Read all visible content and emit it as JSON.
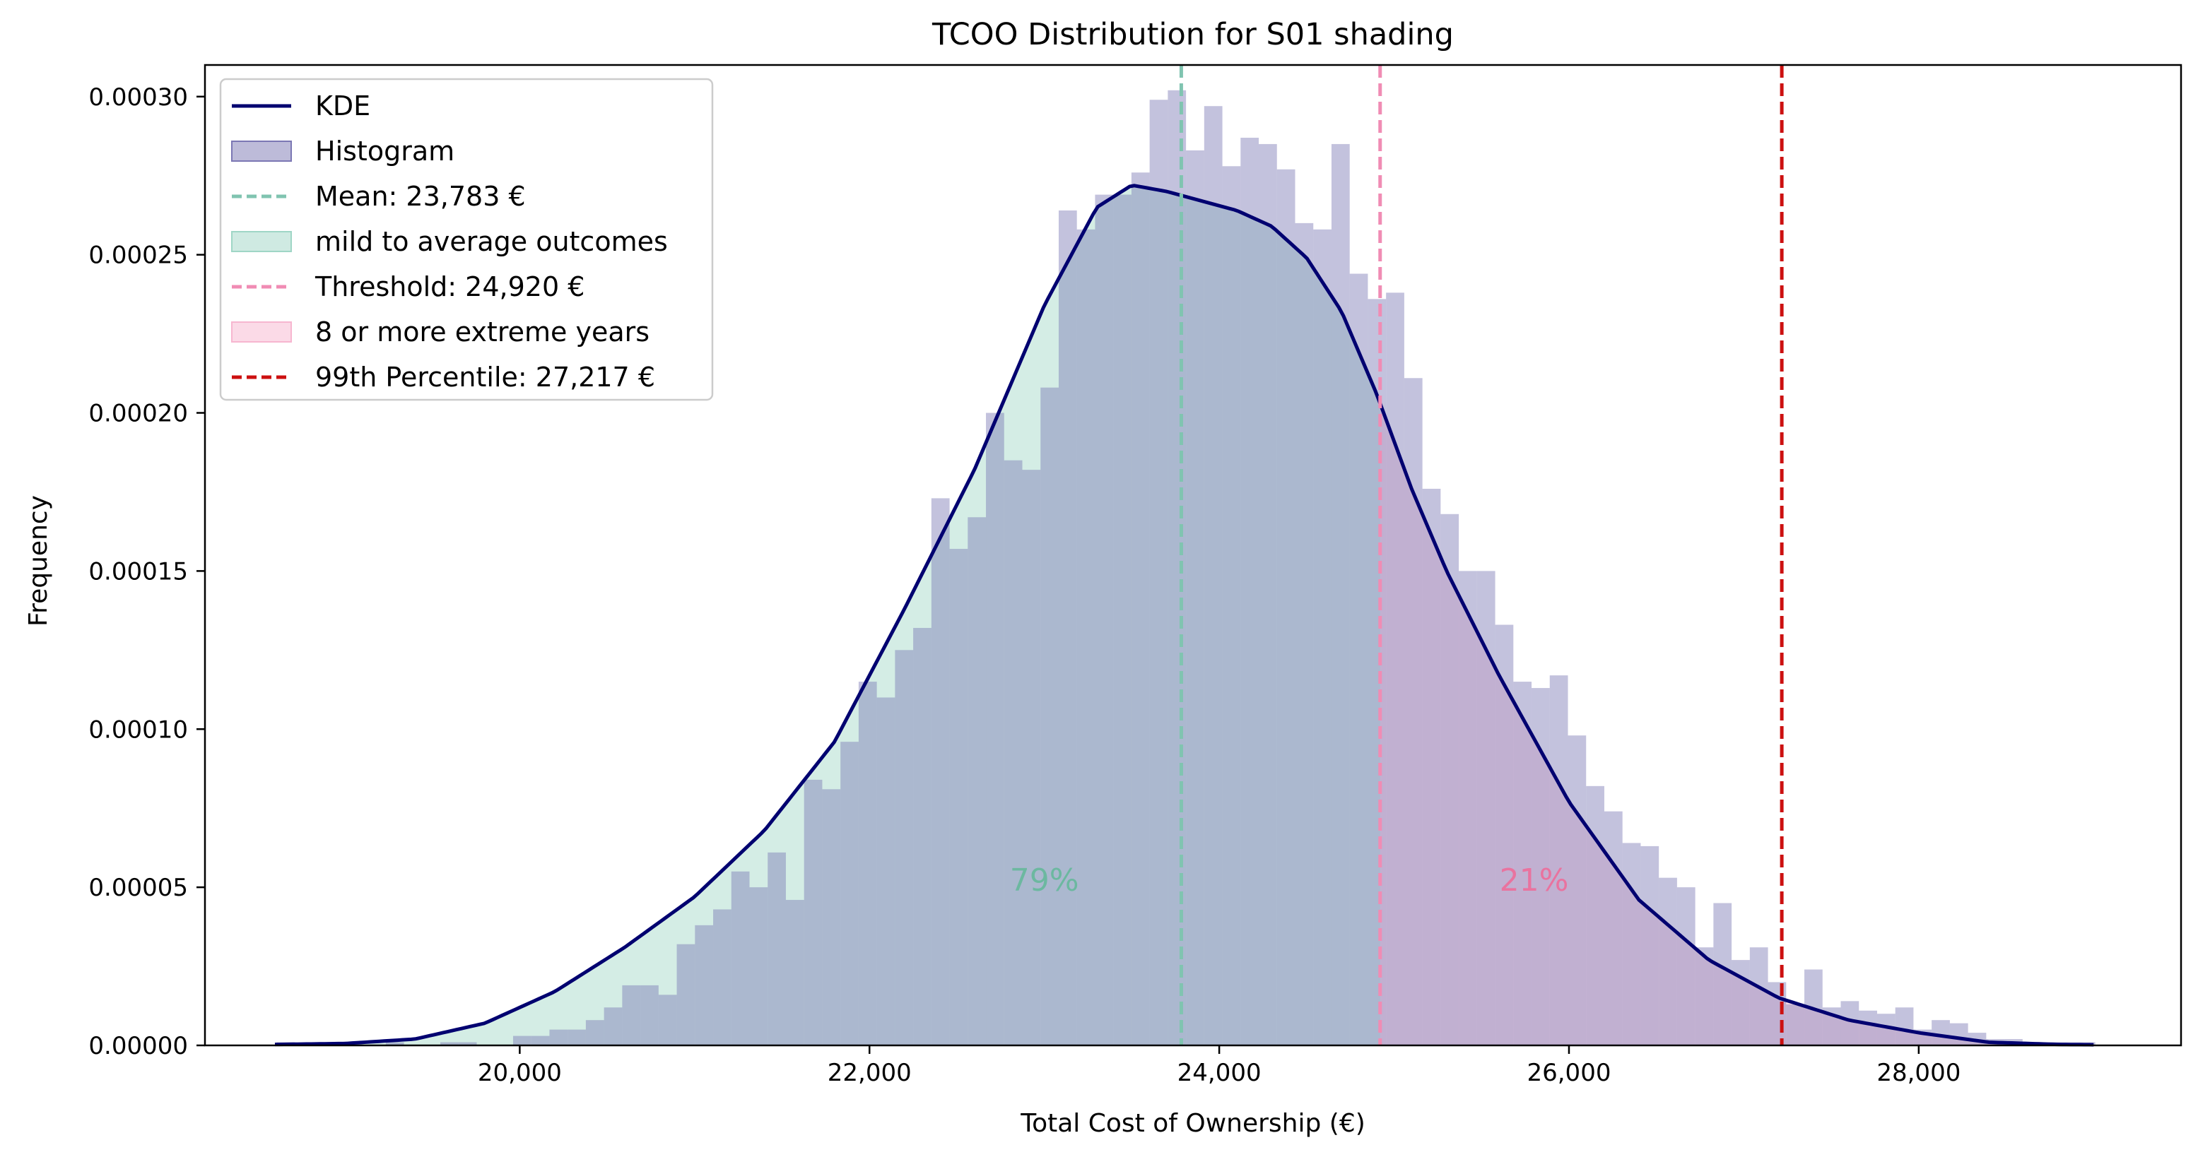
{
  "chart_data": {
    "type": "bar",
    "title": "TCOO Distribution for S01 shading",
    "xlabel": "Total Cost of Ownership (€)",
    "ylabel": "Frequency",
    "xlim": [
      18200,
      29500
    ],
    "ylim": [
      0,
      0.00031
    ],
    "x_ticks": [
      20000,
      22000,
      24000,
      26000,
      28000
    ],
    "x_tick_labels": [
      "20,000",
      "22,000",
      "24,000",
      "26,000",
      "28,000"
    ],
    "y_ticks": [
      0,
      5e-05,
      0.0001,
      0.00015,
      0.0002,
      0.00025,
      0.0003
    ],
    "y_tick_labels": [
      "0.00000",
      "0.00005",
      "0.00010",
      "0.00015",
      "0.00020",
      "0.00025",
      "0.00030"
    ],
    "grid": false,
    "legend_position": "top-left",
    "histogram": {
      "name": "Histogram",
      "color": "#7b77b4",
      "bin_start": 18610,
      "bin_width": 104,
      "values": [
        1e-06,
        0.0,
        0.0,
        0.0,
        0.0,
        0.0,
        1e-06,
        0.0,
        0.0,
        1e-06,
        1e-06,
        0.0,
        0.0,
        3e-06,
        3e-06,
        5e-06,
        5e-06,
        8e-06,
        1.2e-05,
        1.9e-05,
        1.9e-05,
        1.6e-05,
        3.2e-05,
        3.8e-05,
        4.3e-05,
        5.5e-05,
        5e-05,
        6.1e-05,
        4.6e-05,
        8.4e-05,
        8.1e-05,
        9.6e-05,
        0.000115,
        0.00011,
        0.000125,
        0.000132,
        0.000173,
        0.000157,
        0.000167,
        0.0002,
        0.000185,
        0.000182,
        0.000208,
        0.000264,
        0.000258,
        0.000269,
        0.000269,
        0.000276,
        0.000299,
        0.000302,
        0.000283,
        0.000297,
        0.000278,
        0.000287,
        0.000285,
        0.000277,
        0.00026,
        0.000258,
        0.000285,
        0.000244,
        0.000236,
        0.000238,
        0.000211,
        0.000176,
        0.000168,
        0.00015,
        0.00015,
        0.000133,
        0.000115,
        0.000113,
        0.000117,
        9.8e-05,
        8.2e-05,
        7.4e-05,
        6.4e-05,
        6.3e-05,
        5.3e-05,
        5e-05,
        3.1e-05,
        4.5e-05,
        2.7e-05,
        3.1e-05,
        2e-05,
        1.3e-05,
        2.4e-05,
        1.2e-05,
        1.4e-05,
        1.1e-05,
        1e-05,
        1.2e-05,
        5e-06,
        8e-06,
        7e-06,
        4e-06,
        2e-06,
        2e-06,
        1e-06,
        1e-06,
        1e-06,
        1e-06
      ]
    },
    "kde": {
      "name": "KDE",
      "color": "#000070",
      "x": [
        18600,
        19000,
        19400,
        19800,
        20200,
        20600,
        21000,
        21400,
        21800,
        22200,
        22600,
        23000,
        23300,
        23500,
        23700,
        23900,
        24100,
        24300,
        24500,
        24700,
        24900,
        25100,
        25300,
        25600,
        26000,
        26400,
        26800,
        27200,
        27600,
        28000,
        28400,
        28800,
        29000
      ],
      "y": [
        3e-07,
        6e-07,
        2e-06,
        7e-06,
        1.7e-05,
        3.1e-05,
        4.7e-05,
        6.8e-05,
        9.6e-05,
        0.000138,
        0.000182,
        0.000234,
        0.000265,
        0.000272,
        0.00027,
        0.000267,
        0.000264,
        0.000259,
        0.000249,
        0.000232,
        0.000206,
        0.000176,
        0.00015,
        0.000117,
        7.7e-05,
        4.6e-05,
        2.7e-05,
        1.5e-05,
        8e-06,
        4e-06,
        1e-06,
        3e-07,
        2e-07
      ]
    },
    "mean": {
      "value": 23783,
      "label": "Mean: 23,783 €",
      "color": "#80c4b0"
    },
    "threshold": {
      "value": 24920,
      "label": "Threshold: 24,920 €",
      "color": "#f08cb4"
    },
    "p99": {
      "value": 27217,
      "label": "99th Percentile: 27,217 €",
      "color": "#cc1010"
    },
    "regions": [
      {
        "name": "mild to average outcomes",
        "color": "#9fd6c6",
        "from": 18600,
        "to": 24920,
        "percent_label": "79%",
        "percent_x": 23000,
        "percent_color": "#6cb8a0"
      },
      {
        "name": "8 or more extreme years",
        "color": "#f7b6d0",
        "from": 24920,
        "to": 29000,
        "percent_label": "21%",
        "percent_x": 25800,
        "percent_color": "#e9739f"
      }
    ],
    "percent_label_y": 5.2e-05,
    "legend": [
      "KDE",
      "Histogram",
      "Mean: 23,783 €",
      "mild to average outcomes",
      "Threshold: 24,920 €",
      "8 or more extreme years",
      "99th Percentile: 27,217 €"
    ]
  }
}
